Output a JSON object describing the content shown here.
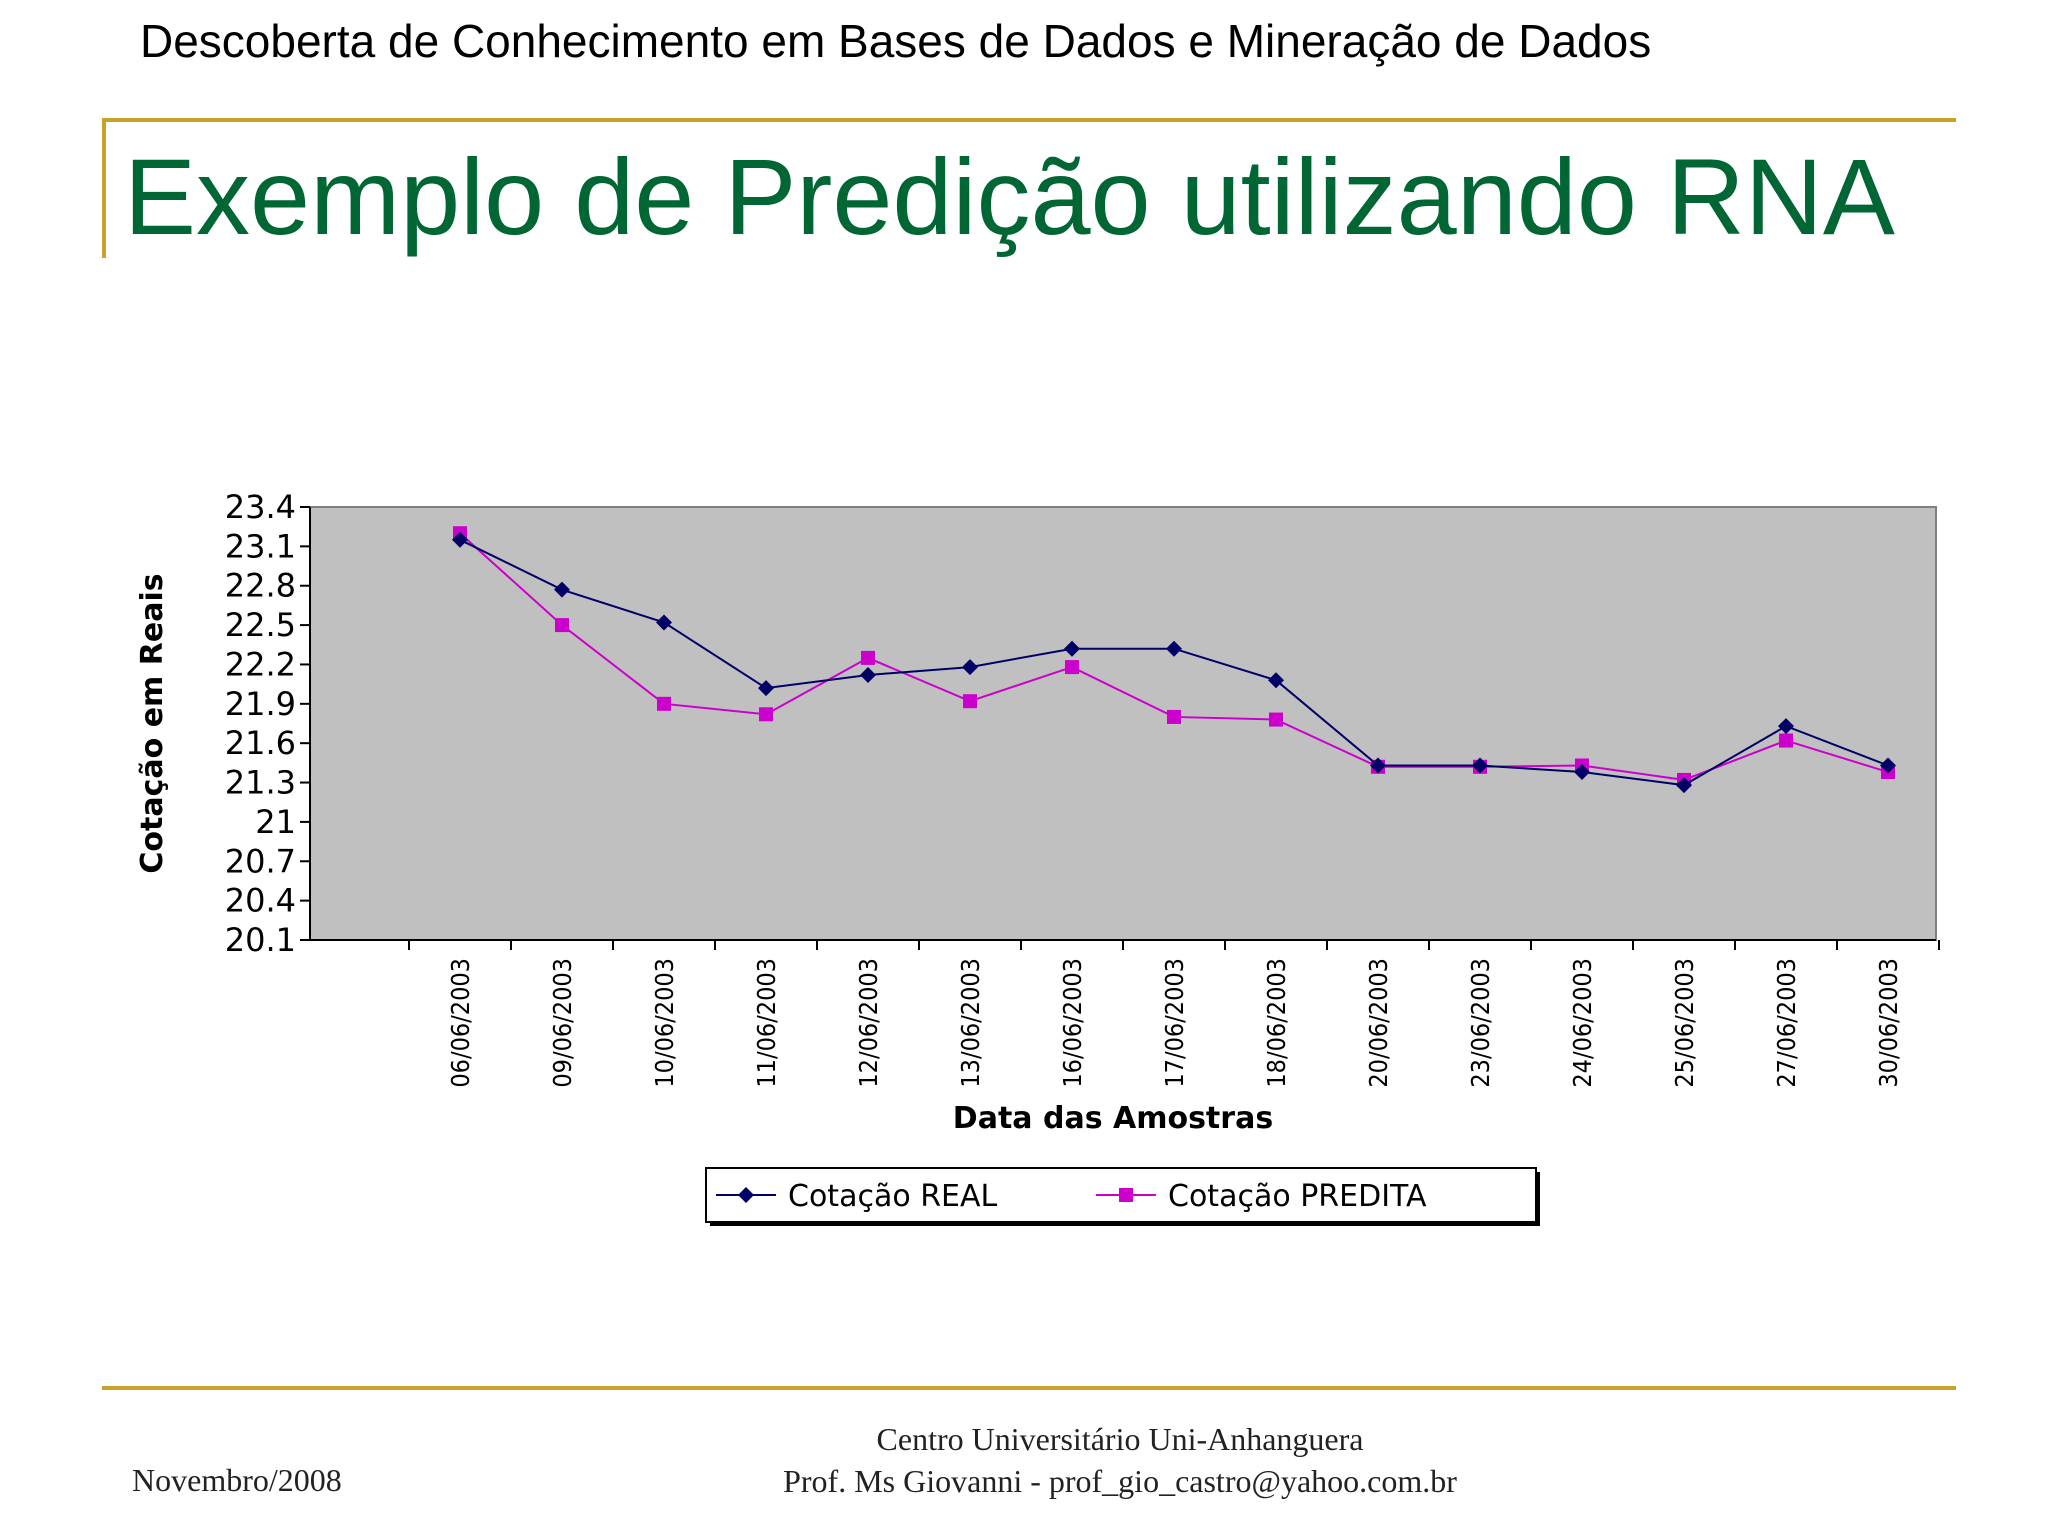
{
  "header": {
    "course_title": "Descoberta de Conhecimento em Bases de Dados e Mineração de Dados"
  },
  "slide": {
    "title": "Exemplo de Predição utilizando RNA"
  },
  "colors": {
    "accent_rule": "#C9A227",
    "title": "#006633",
    "plot_bg": "#C0C0C0",
    "real_series": "#000066",
    "predicted_series": "#CC00CC"
  },
  "chart_data": {
    "type": "line",
    "title": "",
    "xlabel": "Data das Amostras",
    "ylabel": "Cotação em Reais",
    "categories": [
      "06/06/2003",
      "09/06/2003",
      "10/06/2003",
      "11/06/2003",
      "12/06/2003",
      "13/06/2003",
      "16/06/2003",
      "17/06/2003",
      "18/06/2003",
      "20/06/2003",
      "23/06/2003",
      "24/06/2003",
      "25/06/2003",
      "27/06/2003",
      "30/06/2003"
    ],
    "ylim": [
      20.1,
      23.4
    ],
    "yticks": [
      "23.4",
      "23.1",
      "22.8",
      "22.5",
      "22.2",
      "21.9",
      "21.6",
      "21.3",
      "21",
      "20.7",
      "20.4",
      "20.1"
    ],
    "grid": false,
    "legend_position": "bottom",
    "series": [
      {
        "name": "Cotação REAL",
        "marker": "diamond",
        "values": [
          23.15,
          22.77,
          22.52,
          22.02,
          22.12,
          22.18,
          22.32,
          22.32,
          22.08,
          21.43,
          21.43,
          21.38,
          21.28,
          21.73,
          21.43
        ]
      },
      {
        "name": "Cotação PREDITA",
        "marker": "square",
        "values": [
          23.2,
          22.5,
          21.9,
          21.82,
          22.25,
          21.92,
          22.18,
          21.8,
          21.78,
          21.42,
          21.42,
          21.43,
          21.32,
          21.62,
          21.38
        ]
      }
    ]
  },
  "footer": {
    "date": "Novembro/2008",
    "institution": "Centro Universitário Uni-Anhanguera",
    "author": "Prof. Ms Giovanni - prof_gio_castro@yahoo.com.br"
  }
}
